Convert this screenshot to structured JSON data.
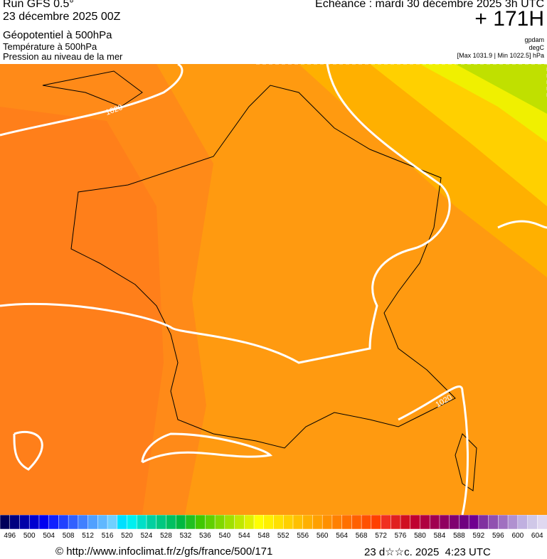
{
  "header": {
    "run": "Run GFS 0.5°",
    "run_date": "23 décembre 2025 00Z",
    "fields": [
      "Géopotentiel à 500hPa",
      "Température à 500hPa",
      "Pression au niveau de la mer"
    ],
    "valid_time": "Echéance : mardi 30 décembre 2025 3h UTC",
    "lead": "+ 171H",
    "units": [
      "gpdam",
      "degC",
      "[Max 1031.9 | Min 1022.5] hPa"
    ]
  },
  "map": {
    "contour_labels": [
      "1020",
      "1020"
    ]
  },
  "legend": {
    "labels": [
      496,
      500,
      504,
      508,
      512,
      516,
      520,
      524,
      528,
      532,
      536,
      540,
      544,
      548,
      552,
      556,
      560,
      564,
      568,
      572,
      576,
      580,
      584,
      588,
      592,
      596,
      600,
      604
    ],
    "colors": [
      "#00005a",
      "#000080",
      "#0000a8",
      "#0000d0",
      "#0000f0",
      "#1020ff",
      "#2040ff",
      "#3060ff",
      "#4080ff",
      "#50a0ff",
      "#60b8ff",
      "#70d0ff",
      "#00e0ff",
      "#00f0f0",
      "#00e0c8",
      "#00d0a0",
      "#00c880",
      "#00c060",
      "#00b840",
      "#20c020",
      "#40c800",
      "#60d000",
      "#80d800",
      "#a0e000",
      "#c0e800",
      "#e0f000",
      "#ffff00",
      "#fff000",
      "#ffe000",
      "#ffd000",
      "#ffc000",
      "#ffb000",
      "#ffa000",
      "#ff9000",
      "#ff8000",
      "#ff7000",
      "#ff6000",
      "#ff5000",
      "#ff4000",
      "#f03020",
      "#e02020",
      "#d01020",
      "#c00030",
      "#b00040",
      "#a00050",
      "#900060",
      "#800070",
      "#700080",
      "#700090",
      "#8030a0",
      "#9050b0",
      "#a070c0",
      "#b090d0",
      "#c0b0e0",
      "#d0c8e8",
      "#e0d8f0"
    ]
  },
  "footer": {
    "url": "© http://www.infoclimat.fr/z/gfs/france/500/171",
    "date": "23 d☆☆c. 2025  4:23 UTC"
  }
}
